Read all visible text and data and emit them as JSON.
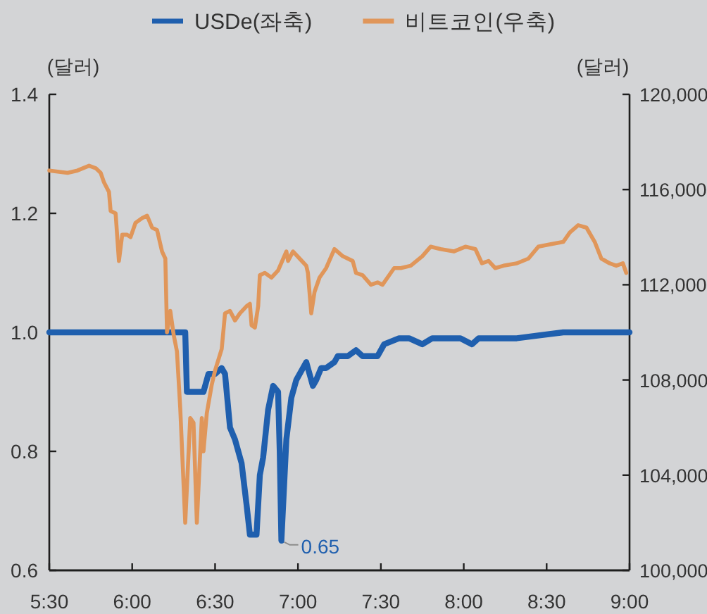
{
  "chart_data": {
    "type": "line",
    "ylabel": "(달러)",
    "y2label": "(달러)",
    "legend": "top",
    "xlim": [
      5.5,
      9
    ],
    "xticks": [
      {
        "value": 5.5,
        "label": "5:30"
      },
      {
        "value": 6,
        "label": "6:00"
      },
      {
        "value": 6.5,
        "label": "6:30"
      },
      {
        "value": 7,
        "label": "7:00"
      },
      {
        "value": 7.5,
        "label": "7:30"
      },
      {
        "value": 8,
        "label": "8:00"
      },
      {
        "value": 8.5,
        "label": "8:30"
      },
      {
        "value": 9,
        "label": "9:00"
      }
    ],
    "ylim": [
      0.6,
      1.4
    ],
    "yticks": [
      0.6,
      0.8,
      {
        "value": 1,
        "label": "1.0"
      },
      1.2,
      1.4
    ],
    "y2lim": [
      100000,
      120000
    ],
    "y2ticks": [
      {
        "value": 100000,
        "label": "100,000"
      },
      {
        "value": 104000,
        "label": "104,000"
      },
      {
        "value": 108000,
        "label": "108,000"
      },
      {
        "value": 112000,
        "label": "112,000"
      },
      {
        "value": 116000,
        "label": "116,000"
      },
      {
        "value": 120000,
        "label": "120,000"
      }
    ],
    "series": [
      {
        "name": "USDe(좌축)",
        "color": "#1f5fae",
        "x": [
          5.5,
          6.32,
          6.33,
          6.43,
          6.46,
          6.5,
          6.54,
          6.56,
          6.59,
          6.62,
          6.66,
          6.69,
          6.71,
          6.75,
          6.77,
          6.79,
          6.82,
          6.85,
          6.88,
          6.89,
          6.9,
          6.93,
          6.96,
          6.99,
          7.03,
          7.05,
          7.09,
          7.11,
          7.14,
          7.17,
          7.22,
          7.24,
          7.3,
          7.35,
          7.39,
          7.44,
          7.48,
          7.52,
          7.61,
          7.67,
          7.75,
          7.81,
          7.98,
          8.05,
          8.09,
          8.32,
          8.6,
          9
        ],
        "values": [
          1,
          1,
          0.9,
          0.9,
          0.93,
          0.93,
          0.94,
          0.93,
          0.84,
          0.82,
          0.78,
          0.71,
          0.66,
          0.66,
          0.76,
          0.79,
          0.87,
          0.91,
          0.9,
          0.8,
          0.65,
          0.82,
          0.89,
          0.92,
          0.94,
          0.95,
          0.91,
          0.92,
          0.94,
          0.94,
          0.95,
          0.96,
          0.96,
          0.97,
          0.96,
          0.96,
          0.96,
          0.98,
          0.99,
          0.99,
          0.98,
          0.99,
          0.99,
          0.98,
          0.99,
          0.99,
          1,
          1
        ],
        "value_labels": [
          null,
          null,
          null,
          null,
          null,
          null,
          null,
          null,
          null,
          null,
          null,
          null,
          null,
          null,
          null,
          null,
          null,
          null,
          null,
          null,
          "0.65",
          null,
          null,
          null,
          null,
          null,
          null,
          null,
          null,
          null,
          null,
          null,
          null,
          null,
          null,
          null,
          null,
          null,
          null,
          null,
          null,
          null,
          null,
          null,
          null,
          null,
          null,
          null
        ]
      },
      {
        "name": "비트코인(우축)",
        "color": "#e0965a",
        "axis": "y2",
        "x": [
          5.5,
          5.61,
          5.67,
          5.74,
          5.78,
          5.81,
          5.83,
          5.86,
          5.87,
          5.9,
          5.92,
          5.94,
          5.97,
          5.99,
          6.02,
          6.06,
          6.09,
          6.12,
          6.15,
          6.18,
          6.2,
          6.21,
          6.23,
          6.25,
          6.27,
          6.29,
          6.32,
          6.35,
          6.37,
          6.39,
          6.42,
          6.43,
          6.45,
          6.48,
          6.5,
          6.54,
          6.56,
          6.59,
          6.62,
          6.65,
          6.69,
          6.71,
          6.72,
          6.74,
          6.76,
          6.77,
          6.8,
          6.84,
          6.88,
          6.93,
          6.94,
          6.97,
          7.01,
          7.05,
          7.06,
          7.08,
          7.1,
          7.13,
          7.17,
          7.22,
          7.27,
          7.33,
          7.35,
          7.39,
          7.44,
          7.48,
          7.51,
          7.56,
          7.58,
          7.62,
          7.68,
          7.75,
          7.8,
          7.86,
          7.94,
          8.01,
          8.07,
          8.11,
          8.15,
          8.19,
          8.24,
          8.32,
          8.39,
          8.45,
          8.52,
          8.6,
          8.64,
          8.69,
          8.74,
          8.79,
          8.83,
          8.88,
          8.92,
          8.96,
          8.98
        ],
        "values": [
          116800,
          116700,
          116800,
          117000,
          116900,
          116700,
          116300,
          115900,
          115100,
          115000,
          113000,
          114100,
          114100,
          114000,
          114600,
          114800,
          114900,
          114400,
          114300,
          113400,
          113100,
          110000,
          110900,
          109900,
          109200,
          106800,
          102000,
          106400,
          106200,
          102000,
          106400,
          105000,
          106600,
          107800,
          108400,
          109300,
          110800,
          110900,
          110500,
          110800,
          111100,
          111200,
          110300,
          110200,
          111100,
          112400,
          112500,
          112300,
          112600,
          113400,
          113000,
          113400,
          113100,
          112800,
          112500,
          110800,
          111700,
          112300,
          112700,
          113500,
          113200,
          113000,
          112500,
          112400,
          112000,
          112100,
          112000,
          112500,
          112700,
          112700,
          112800,
          113200,
          113600,
          113500,
          113400,
          113600,
          113500,
          112900,
          113000,
          112700,
          112800,
          112900,
          113100,
          113600,
          113700,
          113800,
          114200,
          114500,
          114400,
          113800,
          113100,
          112900,
          112800,
          112900,
          112500
        ]
      }
    ]
  }
}
